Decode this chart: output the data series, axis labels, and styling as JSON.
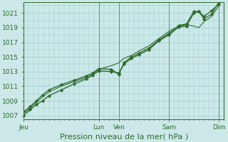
{
  "xlabel": "Pression niveau de la mer( hPa )",
  "bg_color": "#cce8e8",
  "grid_color": "#99cccc",
  "line_color": "#2d6a2d",
  "marker_color": "#2d6a2d",
  "ylim": [
    1006.5,
    1022.5
  ],
  "yticks": [
    1007,
    1009,
    1011,
    1013,
    1015,
    1017,
    1019,
    1021
  ],
  "xlim": [
    0,
    8.0
  ],
  "xtick_labels": [
    "Jeu",
    "Lun",
    "Ven",
    "Sam",
    "Dim"
  ],
  "xtick_positions": [
    0.0,
    3.0,
    3.8,
    5.8,
    7.8
  ],
  "series": [
    {
      "x": [
        0.0,
        0.25,
        0.5,
        0.75,
        1.0,
        1.5,
        2.0,
        2.5,
        2.75,
        3.0,
        3.5,
        3.8,
        4.0,
        4.3,
        4.6,
        5.0,
        5.4,
        5.8,
        6.2,
        6.5,
        6.8,
        7.0,
        7.2,
        7.5,
        7.8
      ],
      "y": [
        1007.0,
        1007.8,
        1008.5,
        1009.0,
        1009.7,
        1010.5,
        1011.3,
        1012.0,
        1012.5,
        1013.1,
        1013.0,
        1012.8,
        1014.0,
        1014.8,
        1015.3,
        1016.0,
        1017.2,
        1018.0,
        1019.1,
        1019.2,
        1021.0,
        1021.2,
        1020.5,
        1021.3,
        1022.2
      ],
      "marker": true,
      "lw": 1.0
    },
    {
      "x": [
        0.0,
        0.25,
        0.5,
        0.75,
        1.0,
        1.5,
        2.0,
        2.5,
        2.75,
        3.0,
        3.5,
        3.8,
        4.0,
        4.3,
        4.6,
        5.0,
        5.4,
        5.8,
        6.2,
        6.5,
        6.8,
        7.0,
        7.2,
        7.5,
        7.8
      ],
      "y": [
        1007.3,
        1008.0,
        1008.8,
        1009.5,
        1010.2,
        1011.0,
        1011.6,
        1012.2,
        1012.6,
        1013.3,
        1013.8,
        1014.2,
        1014.8,
        1015.2,
        1015.8,
        1016.5,
        1017.5,
        1018.5,
        1019.2,
        1019.4,
        1019.2,
        1019.0,
        1019.8,
        1020.5,
        1022.0
      ],
      "marker": false,
      "lw": 0.8
    },
    {
      "x": [
        0.0,
        0.25,
        0.5,
        0.75,
        1.0,
        1.5,
        2.0,
        2.5,
        2.75,
        3.0,
        3.5,
        3.8,
        4.0,
        4.3,
        4.6,
        5.0,
        5.4,
        5.8,
        6.2,
        6.5,
        6.8,
        7.0,
        7.2,
        7.5,
        7.8
      ],
      "y": [
        1007.5,
        1008.2,
        1009.0,
        1009.8,
        1010.5,
        1011.2,
        1011.8,
        1012.4,
        1012.8,
        1013.4,
        1013.3,
        1012.6,
        1014.2,
        1015.0,
        1015.5,
        1016.2,
        1017.3,
        1018.2,
        1019.3,
        1019.5,
        1021.2,
        1021.2,
        1020.2,
        1020.8,
        1022.5
      ],
      "marker": true,
      "lw": 1.0
    }
  ],
  "vline_positions": [
    3.0,
    3.8,
    5.8,
    7.8
  ],
  "tick_fontsize": 6.5,
  "xlabel_fontsize": 8
}
